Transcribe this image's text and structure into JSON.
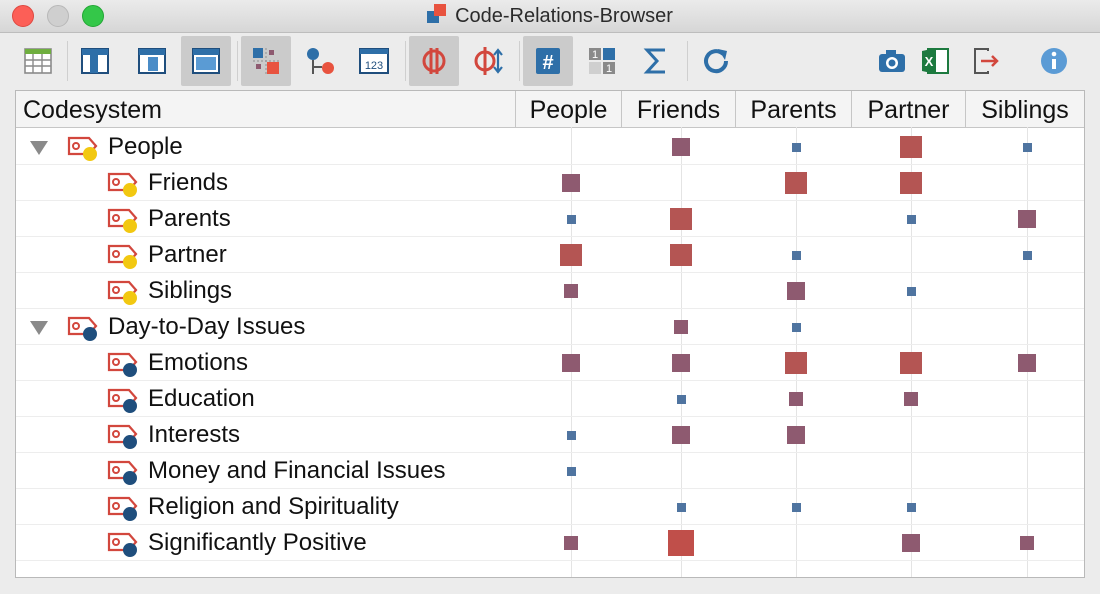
{
  "window": {
    "title": "Code-Relations-Browser"
  },
  "toolbar": {
    "buttons": [
      {
        "name": "grid-view-icon",
        "active": false
      },
      {
        "name": "column-layout-icon",
        "active": false
      },
      {
        "name": "column-layout-alt-icon",
        "active": false
      },
      {
        "name": "window-layout-icon",
        "active": true
      },
      {
        "name": "code-relations-icon",
        "active": true
      },
      {
        "name": "node-link-icon",
        "active": false
      },
      {
        "name": "numeric-values-icon",
        "active": false
      },
      {
        "name": "intersection-icon",
        "active": true
      },
      {
        "name": "proximity-icon",
        "active": false
      },
      {
        "name": "hash-count-icon",
        "active": true
      },
      {
        "name": "binary-display-icon",
        "active": false
      },
      {
        "name": "sigma-sum-icon",
        "active": false
      },
      {
        "name": "refresh-icon",
        "active": false
      },
      {
        "name": "camera-icon",
        "active": false
      },
      {
        "name": "excel-export-icon",
        "active": false
      },
      {
        "name": "export-icon",
        "active": false
      },
      {
        "name": "info-icon",
        "active": false
      }
    ]
  },
  "table": {
    "header_first": "Codesystem",
    "columns": [
      "People",
      "Friends",
      "Parents",
      "Partner",
      "Siblings"
    ],
    "legend_colors": {
      "small": "#4f74a0",
      "medium": "#8e5a70",
      "large": "#c04f4a",
      "yellow": "#f2c811",
      "navy": "#1f4e7d",
      "red": "#d2473d"
    },
    "rows": [
      {
        "label": "People",
        "level": 0,
        "expanded": true,
        "dot": "yellow",
        "cells": [
          0,
          2,
          1,
          3,
          1
        ]
      },
      {
        "label": "Friends",
        "level": 1,
        "dot": "yellow",
        "cells": [
          2,
          0,
          3,
          3,
          0
        ]
      },
      {
        "label": "Parents",
        "level": 1,
        "dot": "yellow",
        "cells": [
          1,
          3,
          0,
          1,
          2
        ]
      },
      {
        "label": "Partner",
        "level": 1,
        "dot": "yellow",
        "cells": [
          3,
          3,
          1,
          0,
          1
        ]
      },
      {
        "label": "Siblings",
        "level": 1,
        "dot": "yellow",
        "cells": [
          1.5,
          0,
          2,
          1,
          0
        ]
      },
      {
        "label": "Day-to-Day Issues",
        "level": 0,
        "expanded": true,
        "dot": "navy",
        "cells": [
          0,
          1.5,
          1,
          0,
          0
        ]
      },
      {
        "label": "Emotions",
        "level": 1,
        "dot": "navy",
        "cells": [
          2,
          2,
          3,
          3,
          2
        ]
      },
      {
        "label": "Education",
        "level": 1,
        "dot": "navy",
        "cells": [
          0,
          1,
          1.5,
          1.5,
          0
        ]
      },
      {
        "label": "Interests",
        "level": 1,
        "dot": "navy",
        "cells": [
          1,
          2,
          2,
          0,
          0
        ]
      },
      {
        "label": "Money and Financial Issues",
        "level": 1,
        "dot": "navy",
        "cells": [
          1,
          0,
          0,
          0,
          0
        ]
      },
      {
        "label": "Religion and Spirituality",
        "level": 1,
        "dot": "navy",
        "cells": [
          0,
          1,
          1,
          1,
          0
        ]
      },
      {
        "label": "Significantly Positive",
        "level": 1,
        "dot": "navy",
        "cells": [
          1.5,
          4,
          0,
          2,
          1.5
        ]
      }
    ]
  }
}
